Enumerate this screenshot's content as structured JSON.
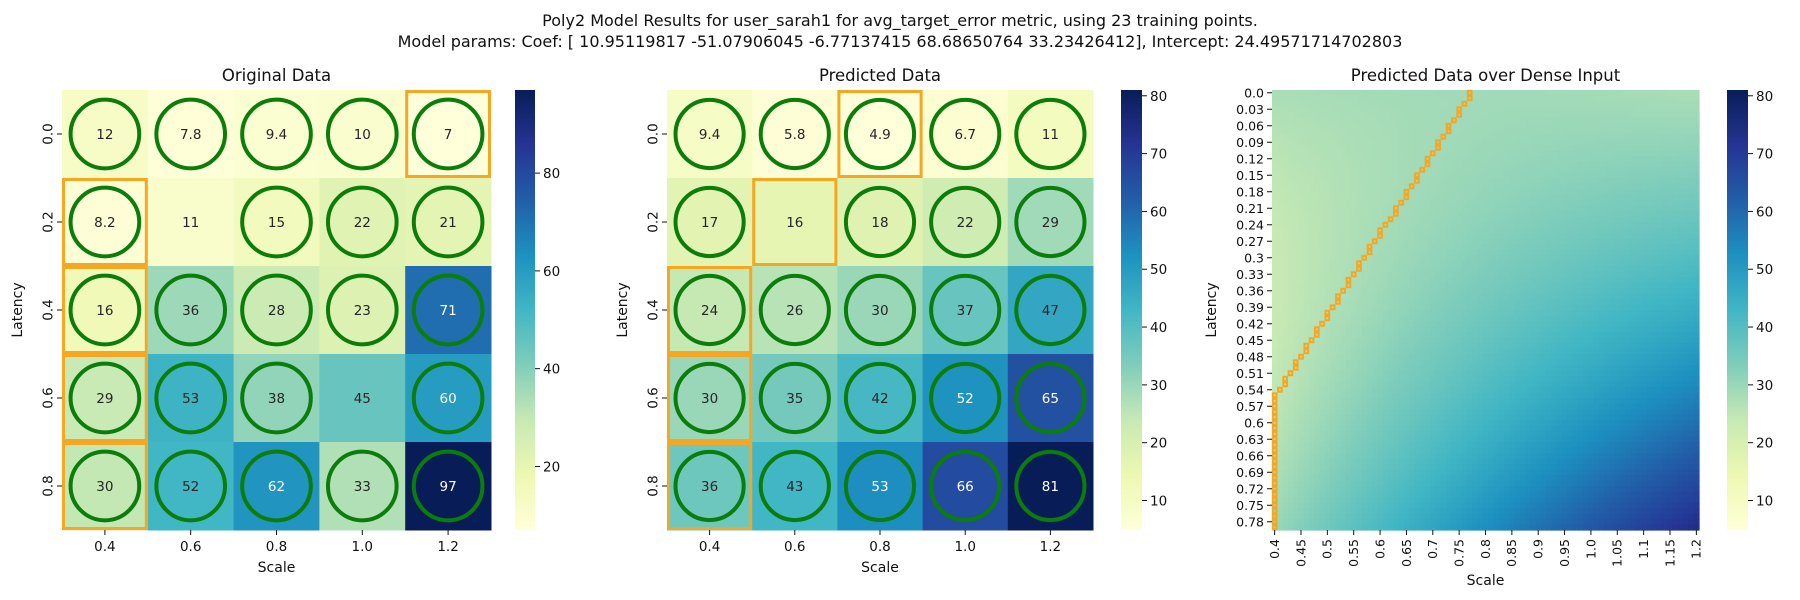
{
  "figure": {
    "title_line1": "Poly2 Model Results for user_sarah1 for avg_target_error metric, using 23 training points.",
    "title_line2": "Model params: Coef: [ 10.95119817 -51.07906045  -6.77137415  68.68650764  33.23426412], Intercept: 24.49571714702803"
  },
  "colors": {
    "circle": "#0a7d0a",
    "highlight": "#f5a623",
    "cmap": [
      "#ffffd9",
      "#edf8b1",
      "#c7e9b4",
      "#7fcdbb",
      "#41b6c4",
      "#1d91c0",
      "#225ea8",
      "#253494",
      "#081d58"
    ]
  },
  "chart_data": [
    {
      "type": "heatmap",
      "title": "Original Data",
      "xlabel": "Scale",
      "ylabel": "Latency",
      "x_ticks": [
        "0.4",
        "0.6",
        "0.8",
        "1.0",
        "1.2"
      ],
      "y_ticks": [
        "0.0",
        "0.2",
        "0.4",
        "0.6",
        "0.8"
      ],
      "values": [
        [
          12,
          7.8,
          9.4,
          10,
          7
        ],
        [
          8.2,
          11,
          15,
          22,
          21
        ],
        [
          16,
          36,
          28,
          23,
          71
        ],
        [
          29,
          53,
          38,
          45,
          60
        ],
        [
          30,
          52,
          62,
          33,
          97
        ]
      ],
      "annotations": [
        [
          "12",
          "7.8",
          "9.4",
          "10",
          "7"
        ],
        [
          "8.2",
          "11",
          "15",
          "22",
          "21"
        ],
        [
          "16",
          "36",
          "28",
          "23",
          "71"
        ],
        [
          "29",
          "53",
          "38",
          "45",
          "60"
        ],
        [
          "30",
          "52",
          "62",
          "33",
          "97"
        ]
      ],
      "circled": [
        [
          1,
          1,
          1,
          1,
          1
        ],
        [
          1,
          0,
          1,
          1,
          1
        ],
        [
          1,
          1,
          1,
          1,
          1
        ],
        [
          1,
          1,
          1,
          0,
          1
        ],
        [
          1,
          1,
          1,
          1,
          1
        ]
      ],
      "highlighted": [
        [
          0,
          4
        ],
        [
          1,
          0
        ],
        [
          2,
          0
        ],
        [
          3,
          0
        ],
        [
          4,
          0
        ]
      ],
      "colorbar": {
        "min": 7,
        "max": 97,
        "ticks": [
          20,
          40,
          60,
          80
        ]
      }
    },
    {
      "type": "heatmap",
      "title": "Predicted Data",
      "xlabel": "Scale",
      "ylabel": "Latency",
      "x_ticks": [
        "0.4",
        "0.6",
        "0.8",
        "1.0",
        "1.2"
      ],
      "y_ticks": [
        "0.0",
        "0.2",
        "0.4",
        "0.6",
        "0.8"
      ],
      "values": [
        [
          9.4,
          5.8,
          4.9,
          6.7,
          11
        ],
        [
          17,
          16,
          18,
          22,
          29
        ],
        [
          24,
          26,
          30,
          37,
          47
        ],
        [
          30,
          35,
          42,
          52,
          65
        ],
        [
          36,
          43,
          53,
          66,
          81
        ]
      ],
      "annotations": [
        [
          "9.4",
          "5.8",
          "4.9",
          "6.7",
          "11"
        ],
        [
          "17",
          "16",
          "18",
          "22",
          "29"
        ],
        [
          "24",
          "26",
          "30",
          "37",
          "47"
        ],
        [
          "30",
          "35",
          "42",
          "52",
          "65"
        ],
        [
          "36",
          "43",
          "53",
          "66",
          "81"
        ]
      ],
      "circled": [
        [
          1,
          1,
          1,
          1,
          1
        ],
        [
          1,
          0,
          1,
          1,
          1
        ],
        [
          1,
          1,
          1,
          1,
          1
        ],
        [
          1,
          1,
          1,
          1,
          1
        ],
        [
          1,
          1,
          1,
          1,
          1
        ]
      ],
      "highlighted": [
        [
          0,
          2
        ],
        [
          1,
          1
        ],
        [
          2,
          0
        ],
        [
          3,
          0
        ],
        [
          4,
          0
        ]
      ],
      "colorbar": {
        "min": 4.9,
        "max": 81,
        "ticks": [
          10,
          20,
          30,
          40,
          50,
          60,
          70,
          80
        ]
      }
    },
    {
      "type": "heatmap",
      "title": "Predicted Data over Dense Input",
      "xlabel": "Scale",
      "ylabel": "Latency",
      "x_ticks": [
        "0.4",
        "0.45",
        "0.5",
        "0.55",
        "0.6",
        "0.65",
        "0.7",
        "0.75",
        "0.8",
        "0.85",
        "0.9",
        "0.95",
        "1.0",
        "1.05",
        "1.1",
        "1.15",
        "1.2"
      ],
      "y_ticks": [
        "0.0",
        "0.03",
        "0.06",
        "0.09",
        "0.12",
        "0.15",
        "0.18",
        "0.21",
        "0.24",
        "0.27",
        "0.3",
        "0.33",
        "0.36",
        "0.39",
        "0.42",
        "0.45",
        "0.48",
        "0.51",
        "0.54",
        "0.57",
        "0.6",
        "0.63",
        "0.66",
        "0.69",
        "0.72",
        "0.75",
        "0.78"
      ],
      "grid_x": {
        "start": 0.4,
        "step": 0.01,
        "count": 81
      },
      "grid_y": {
        "start": 0.0,
        "step": 0.01,
        "count": 80
      },
      "model": {
        "inputs": [
          "Scale",
          "Latency"
        ],
        "coef": [
          10.95119817,
          -51.07906045,
          -6.77137415,
          68.68650764,
          33.23426412
        ],
        "intercept": 24.49571714702803
      },
      "min_path": [
        [
          0.0,
          0.77
        ],
        [
          0.01,
          0.77
        ],
        [
          0.02,
          0.76
        ],
        [
          0.03,
          0.75
        ],
        [
          0.04,
          0.75
        ],
        [
          0.05,
          0.74
        ],
        [
          0.06,
          0.73
        ],
        [
          0.07,
          0.73
        ],
        [
          0.08,
          0.72
        ],
        [
          0.09,
          0.71
        ],
        [
          0.1,
          0.71
        ],
        [
          0.11,
          0.7
        ],
        [
          0.12,
          0.69
        ],
        [
          0.13,
          0.69
        ],
        [
          0.14,
          0.68
        ],
        [
          0.15,
          0.67
        ],
        [
          0.16,
          0.67
        ],
        [
          0.17,
          0.66
        ],
        [
          0.18,
          0.65
        ],
        [
          0.19,
          0.65
        ],
        [
          0.2,
          0.64
        ],
        [
          0.21,
          0.63
        ],
        [
          0.22,
          0.63
        ],
        [
          0.23,
          0.62
        ],
        [
          0.24,
          0.61
        ],
        [
          0.25,
          0.6
        ],
        [
          0.26,
          0.6
        ],
        [
          0.27,
          0.59
        ],
        [
          0.28,
          0.58
        ],
        [
          0.29,
          0.58
        ],
        [
          0.3,
          0.57
        ],
        [
          0.31,
          0.56
        ],
        [
          0.32,
          0.56
        ],
        [
          0.33,
          0.55
        ],
        [
          0.34,
          0.54
        ],
        [
          0.35,
          0.54
        ],
        [
          0.36,
          0.53
        ],
        [
          0.37,
          0.52
        ],
        [
          0.38,
          0.52
        ],
        [
          0.39,
          0.51
        ],
        [
          0.4,
          0.5
        ],
        [
          0.41,
          0.5
        ],
        [
          0.42,
          0.49
        ],
        [
          0.43,
          0.48
        ],
        [
          0.44,
          0.48
        ],
        [
          0.45,
          0.47
        ],
        [
          0.46,
          0.46
        ],
        [
          0.47,
          0.46
        ],
        [
          0.48,
          0.45
        ],
        [
          0.49,
          0.44
        ],
        [
          0.5,
          0.44
        ],
        [
          0.51,
          0.43
        ],
        [
          0.52,
          0.42
        ],
        [
          0.53,
          0.42
        ],
        [
          0.54,
          0.41
        ],
        [
          0.55,
          0.4
        ],
        [
          0.56,
          0.4
        ],
        [
          0.57,
          0.4
        ],
        [
          0.58,
          0.4
        ],
        [
          0.59,
          0.4
        ],
        [
          0.6,
          0.4
        ],
        [
          0.61,
          0.4
        ],
        [
          0.62,
          0.4
        ],
        [
          0.63,
          0.4
        ],
        [
          0.64,
          0.4
        ],
        [
          0.65,
          0.4
        ],
        [
          0.66,
          0.4
        ],
        [
          0.67,
          0.4
        ],
        [
          0.68,
          0.4
        ],
        [
          0.69,
          0.4
        ],
        [
          0.7,
          0.4
        ],
        [
          0.71,
          0.4
        ],
        [
          0.72,
          0.4
        ],
        [
          0.73,
          0.4
        ],
        [
          0.74,
          0.4
        ],
        [
          0.75,
          0.4
        ],
        [
          0.76,
          0.4
        ],
        [
          0.77,
          0.4
        ],
        [
          0.78,
          0.4
        ],
        [
          0.79,
          0.4
        ]
      ],
      "colorbar": {
        "min": 4.9,
        "max": 81,
        "ticks": [
          10,
          20,
          30,
          40,
          50,
          60,
          70,
          80
        ]
      }
    }
  ]
}
